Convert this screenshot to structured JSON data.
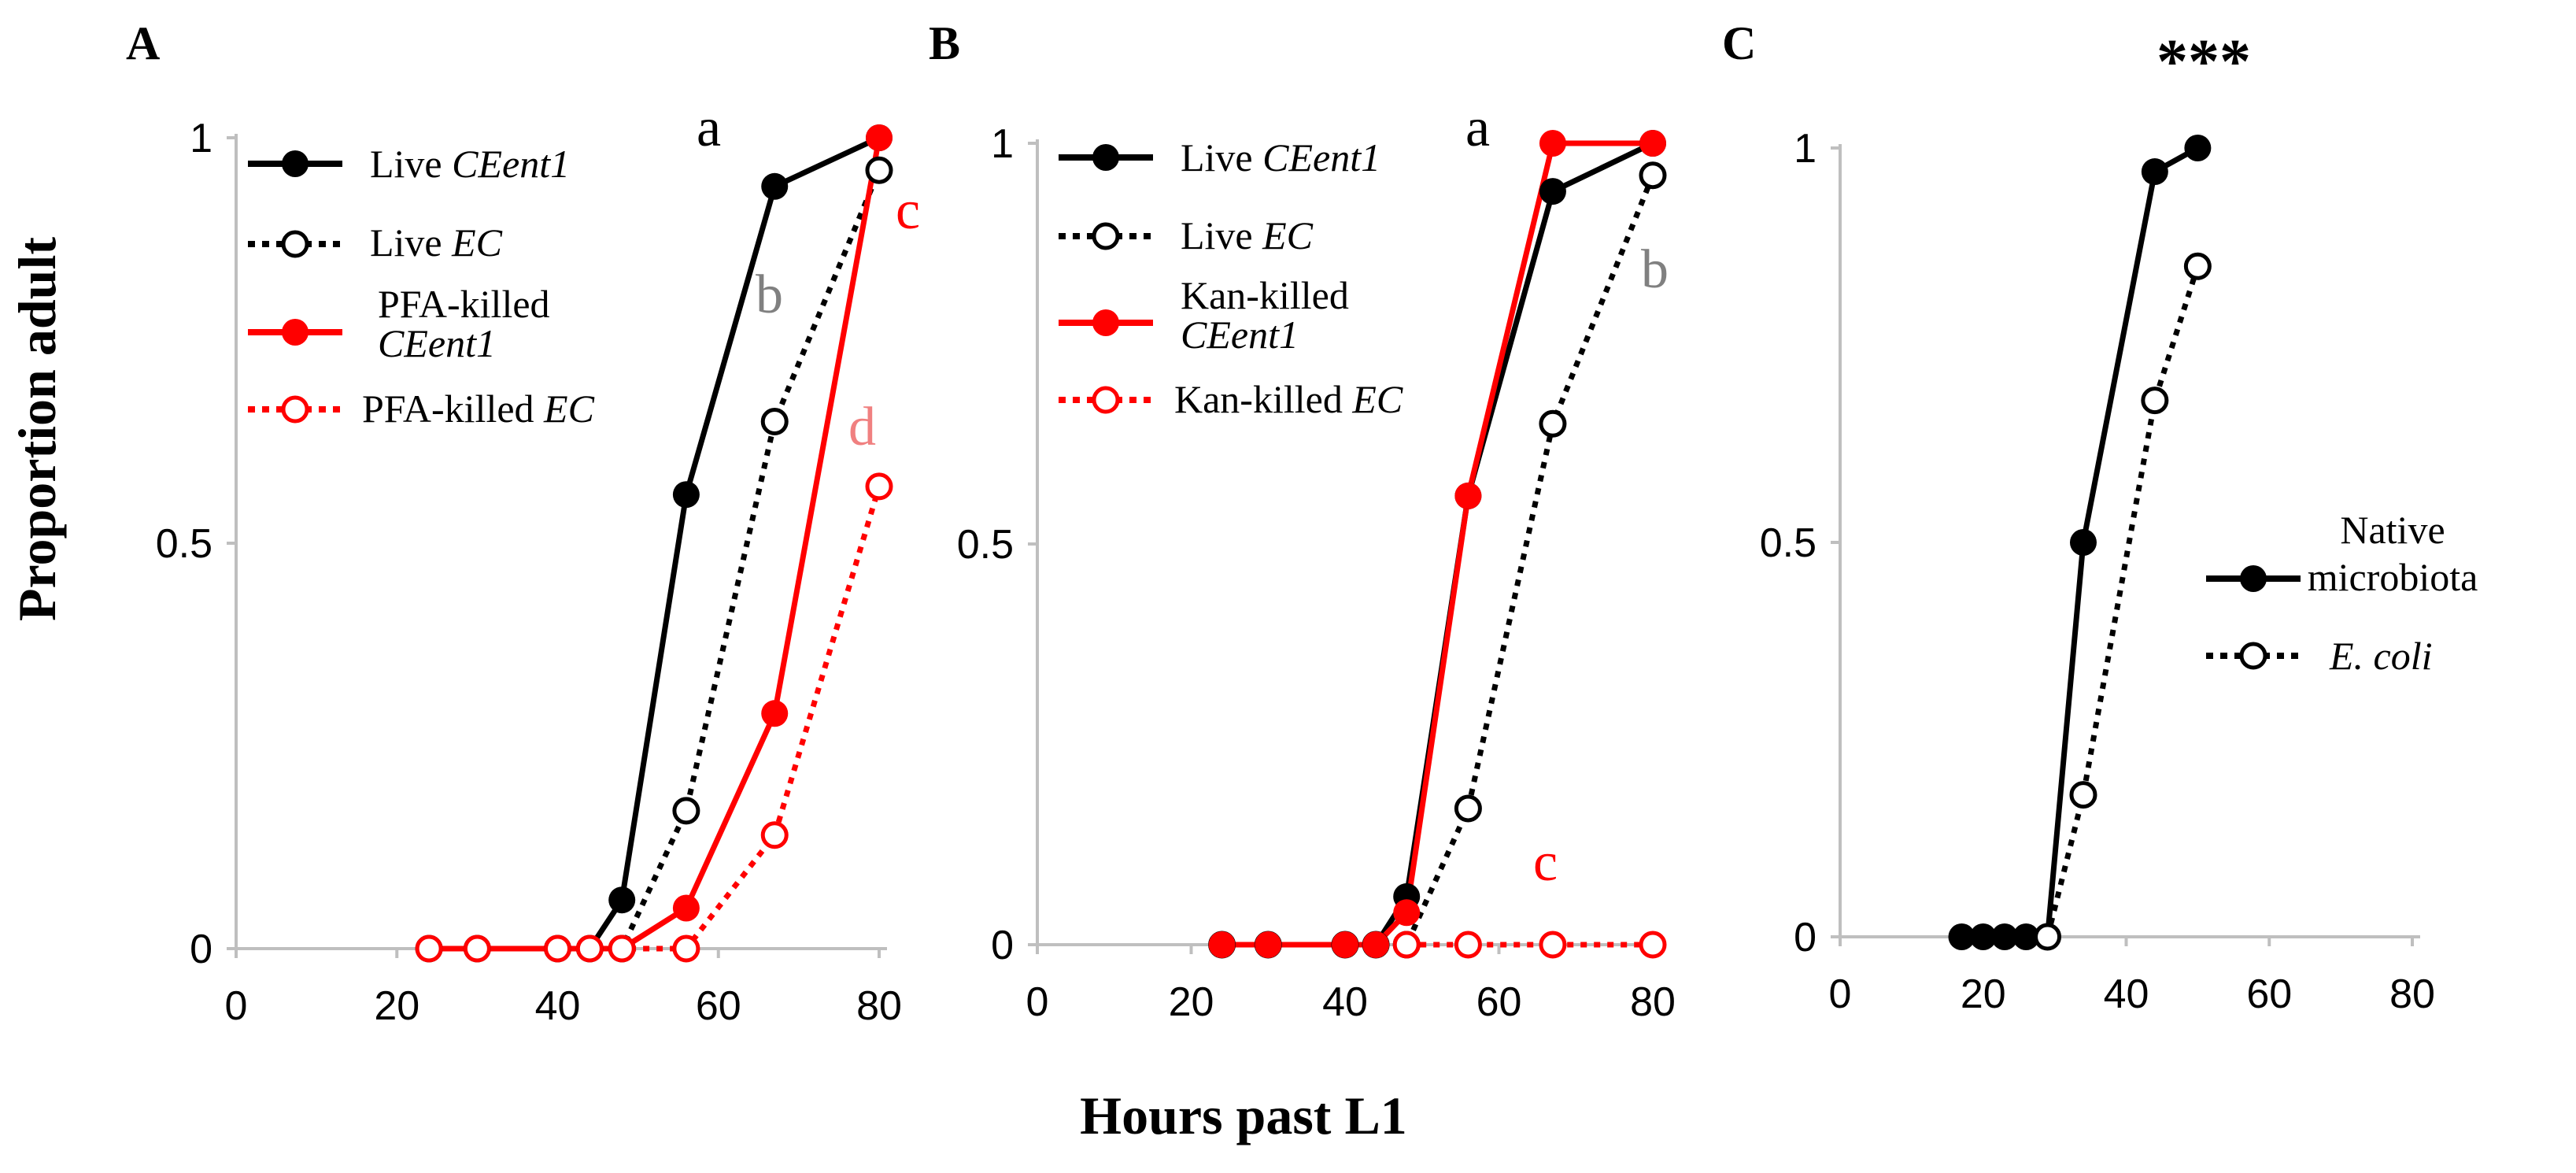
{
  "figure": {
    "ylabel": "Proportion adult",
    "xlabel": "Hours past L1"
  },
  "colors": {
    "black": "#000000",
    "red": "#ff0000",
    "gray_sig": "#808080",
    "pink_sig": "#f08080",
    "axis": "#bfbfbf"
  },
  "chart_data": [
    {
      "type": "line",
      "panel": "A",
      "xlim": [
        0,
        80
      ],
      "ylim": [
        0,
        1
      ],
      "xticks": [
        "0",
        "20",
        "40",
        "60",
        "80"
      ],
      "yticks": [
        "0",
        "0.5",
        "1"
      ],
      "legend_position": "top-left",
      "series": [
        {
          "name": "Live CEent1",
          "name_plain": "Live ",
          "name_italic": "CEent1",
          "color": "#000000",
          "style": "solid",
          "marker": "filled",
          "x": [
            24,
            30,
            40,
            44,
            48,
            56,
            67,
            80
          ],
          "y": [
            0,
            0,
            0,
            0,
            0.06,
            0.56,
            0.94,
            1.0
          ]
        },
        {
          "name": "Live EC",
          "name_plain": "Live ",
          "name_italic": "EC",
          "color": "#000000",
          "style": "dotted",
          "marker": "open",
          "x": [
            24,
            30,
            40,
            44,
            48,
            56,
            67,
            80
          ],
          "y": [
            0,
            0,
            0,
            0,
            0,
            0.17,
            0.65,
            0.96
          ]
        },
        {
          "name": "PFA-killed CEent1",
          "name_plain": "PFA-killed",
          "name_italic": "CEent1",
          "color": "#ff0000",
          "style": "solid",
          "marker": "filled",
          "x": [
            24,
            30,
            40,
            44,
            48,
            56,
            67,
            80
          ],
          "y": [
            0,
            0,
            0,
            0,
            0,
            0.05,
            0.29,
            1.0
          ]
        },
        {
          "name": "PFA-killed EC",
          "name_plain": "PFA-killed ",
          "name_italic": "EC",
          "color": "#ff0000",
          "style": "dotted",
          "marker": "open",
          "x": [
            24,
            30,
            40,
            44,
            48,
            56,
            67,
            80
          ],
          "y": [
            0,
            0,
            0,
            0,
            0,
            0,
            0.14,
            0.57
          ]
        }
      ],
      "annotations": [
        {
          "text": "a",
          "color": "#000000"
        },
        {
          "text": "b",
          "color": "#808080"
        },
        {
          "text": "c",
          "color": "#ff0000"
        },
        {
          "text": "d",
          "color": "#f08080"
        }
      ]
    },
    {
      "type": "line",
      "panel": "B",
      "xlim": [
        0,
        80
      ],
      "ylim": [
        0,
        1
      ],
      "xticks": [
        "0",
        "20",
        "40",
        "60",
        "80"
      ],
      "yticks": [
        "0",
        "0.5",
        "1"
      ],
      "legend_position": "top-left",
      "series": [
        {
          "name": "Live CEent1",
          "name_plain": "Live ",
          "name_italic": "CEent1",
          "color": "#000000",
          "style": "solid",
          "marker": "filled",
          "x": [
            24,
            30,
            40,
            44,
            48,
            56,
            67,
            80
          ],
          "y": [
            0,
            0,
            0,
            0,
            0.06,
            0.56,
            0.94,
            1.0
          ]
        },
        {
          "name": "Live EC",
          "name_plain": "Live ",
          "name_italic": "EC",
          "color": "#000000",
          "style": "dotted",
          "marker": "open",
          "x": [
            24,
            30,
            40,
            44,
            48,
            56,
            67,
            80
          ],
          "y": [
            0,
            0,
            0,
            0,
            0,
            0.17,
            0.65,
            0.96
          ]
        },
        {
          "name": "Kan-killed CEent1",
          "name_plain": "Kan-killed",
          "name_italic": "CEent1",
          "color": "#ff0000",
          "style": "solid",
          "marker": "filled",
          "x": [
            24,
            30,
            40,
            44,
            48,
            56,
            67,
            80
          ],
          "y": [
            0,
            0,
            0,
            0,
            0.04,
            0.56,
            1.0,
            1.0
          ]
        },
        {
          "name": "Kan-killed EC",
          "name_plain": "Kan-killed ",
          "name_italic": "EC",
          "color": "#ff0000",
          "style": "dotted",
          "marker": "open",
          "x": [
            48,
            56,
            67,
            80
          ],
          "y": [
            0,
            0,
            0,
            0
          ]
        }
      ],
      "annotations": [
        {
          "text": "a",
          "color": "#000000"
        },
        {
          "text": "b",
          "color": "#808080"
        },
        {
          "text": "c",
          "color": "#ff0000"
        }
      ]
    },
    {
      "type": "line",
      "panel": "C",
      "xlim": [
        0,
        80
      ],
      "ylim": [
        0,
        1
      ],
      "xticks": [
        "0",
        "20",
        "40",
        "60",
        "80"
      ],
      "yticks": [
        "0",
        "0.5",
        "1"
      ],
      "legend_position": "right",
      "significance": "***",
      "series": [
        {
          "name": "Native microbiota",
          "label_lines": [
            "Native",
            "microbiota"
          ],
          "color": "#000000",
          "style": "solid",
          "marker": "filled",
          "x": [
            17,
            20,
            23,
            26,
            29,
            34,
            44,
            50
          ],
          "y": [
            0,
            0,
            0,
            0,
            0,
            0.5,
            0.97,
            1.0
          ]
        },
        {
          "name": "E. coli",
          "label_italic": "E. coli",
          "color": "#000000",
          "style": "dotted",
          "marker": "open",
          "x": [
            29,
            34,
            44,
            50
          ],
          "y": [
            0,
            0.18,
            0.68,
            0.85
          ]
        }
      ]
    }
  ]
}
